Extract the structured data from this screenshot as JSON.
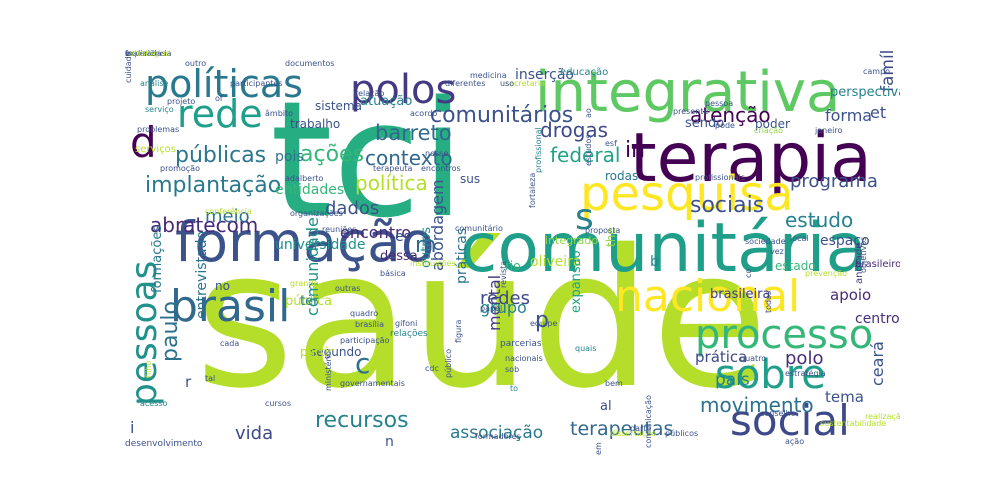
{
  "words": [
    {
      "text": "saúde",
      "color": "#b5de2b"
    },
    {
      "text": "tci",
      "color": "#26ad81"
    },
    {
      "text": "comunitária",
      "color": "#1f9e89"
    },
    {
      "text": "terapia",
      "color": "#440154"
    },
    {
      "text": "integrativa",
      "color": "#5ec962"
    },
    {
      "text": "formação",
      "color": "#3b528b"
    },
    {
      "text": "pesquisa",
      "color": "#fde725"
    },
    {
      "text": "nacional",
      "color": "#fde725"
    },
    {
      "text": "brasil",
      "color": "#31688e"
    },
    {
      "text": "processo",
      "color": "#35b779"
    },
    {
      "text": "sobre",
      "color": "#1f9e89"
    },
    {
      "text": "social",
      "color": "#3e4989"
    },
    {
      "text": "pessoas",
      "color": "#21918c"
    },
    {
      "text": "políticas",
      "color": "#2a788e"
    },
    {
      "text": "polos",
      "color": "#443983"
    },
    {
      "text": "rede",
      "color": "#1f9e89"
    },
    {
      "text": "públicas",
      "color": "#2a788e"
    },
    {
      "text": "implantação",
      "color": "#2a788e"
    },
    {
      "text": "abratecom",
      "color": "#482878"
    },
    {
      "text": "ações",
      "color": "#35b779"
    },
    {
      "text": "contexto",
      "color": "#31688e"
    },
    {
      "text": "política",
      "color": "#b5de2b"
    },
    {
      "text": "comunitários",
      "color": "#3b528b"
    },
    {
      "text": "barreto",
      "color": "#31688e"
    },
    {
      "text": "drogas",
      "color": "#3e4989"
    },
    {
      "text": "atenção",
      "color": "#440154"
    },
    {
      "text": "federal",
      "color": "#20a386"
    },
    {
      "text": "sociais",
      "color": "#3b528b"
    },
    {
      "text": "estudo",
      "color": "#26828e"
    },
    {
      "text": "programa",
      "color": "#3b528b"
    },
    {
      "text": "família",
      "color": "#3e4989"
    },
    {
      "text": "forma",
      "color": "#3b528b"
    },
    {
      "text": "movimento",
      "color": "#2c728e"
    },
    {
      "text": "associação",
      "color": "#2a788e"
    },
    {
      "text": "terapeutas",
      "color": "#31688e"
    },
    {
      "text": "recursos",
      "color": "#26828e"
    },
    {
      "text": "vida",
      "color": "#3e4989"
    },
    {
      "text": "comunidade",
      "color": "#21918c"
    },
    {
      "text": "abordagem",
      "color": "#3b528b"
    },
    {
      "text": "práticas",
      "color": "#2c728e"
    },
    {
      "text": "mental",
      "color": "#443983"
    },
    {
      "text": "redes",
      "color": "#3e4989"
    },
    {
      "text": "grupo",
      "color": "#26828e"
    },
    {
      "text": "polo",
      "color": "#472d7b"
    },
    {
      "text": "país",
      "color": "#26828e"
    },
    {
      "text": "ceará",
      "color": "#3b528b"
    },
    {
      "text": "tema",
      "color": "#3b528b"
    },
    {
      "text": "centro",
      "color": "#472d7b"
    },
    {
      "text": "apoio",
      "color": "#482878"
    },
    {
      "text": "espaço",
      "color": "#3b528b"
    },
    {
      "text": "prática",
      "color": "#3e4989"
    },
    {
      "text": "paulo",
      "color": "#2c728e"
    },
    {
      "text": "entrevistado",
      "color": "#2c728e"
    },
    {
      "text": "meio",
      "color": "#2c728e"
    },
    {
      "text": "dados",
      "color": "#3b528b"
    },
    {
      "text": "entidades",
      "color": "#35b779"
    },
    {
      "text": "universidade",
      "color": "#21918c"
    },
    {
      "text": "pública",
      "color": "#b5de2b"
    },
    {
      "text": "encontro",
      "color": "#482878"
    },
    {
      "text": "formações",
      "color": "#2a788e"
    },
    {
      "text": "pois",
      "color": "#2c728e"
    },
    {
      "text": "sendo",
      "color": "#3b528b"
    },
    {
      "text": "poder",
      "color": "#3b528b"
    },
    {
      "text": "perspectiva",
      "color": "#26828e"
    },
    {
      "text": "inserção",
      "color": "#3b528b"
    },
    {
      "text": "atuação",
      "color": "#26828e"
    },
    {
      "text": "sistema",
      "color": "#3b528b"
    },
    {
      "text": "trabalho",
      "color": "#3b528b"
    },
    {
      "text": "sus",
      "color": "#3b528b"
    },
    {
      "text": "rodas",
      "color": "#2a788e"
    },
    {
      "text": "oliveira",
      "color": "#b5de2b"
    },
    {
      "text": "segundo",
      "color": "#3b528b"
    },
    {
      "text": "partir",
      "color": "#b5de2b"
    },
    {
      "text": "outros",
      "color": "#21918c"
    },
    {
      "text": "expansão",
      "color": "#20a386"
    },
    {
      "text": "rio",
      "color": "#35b779"
    },
    {
      "text": "integrado",
      "color": "#90d743"
    },
    {
      "text": "estado",
      "color": "#35b779"
    },
    {
      "text": "brasileira",
      "color": "#443983"
    },
    {
      "text": "dessa",
      "color": "#482878"
    },
    {
      "text": "d",
      "color": "#440154"
    },
    {
      "text": "s",
      "color": "#26828e"
    },
    {
      "text": "c",
      "color": "#2c728e"
    },
    {
      "text": "p",
      "color": "#3b528b"
    },
    {
      "text": "m",
      "color": "#31688e"
    },
    {
      "text": "in",
      "color": "#440154"
    },
    {
      "text": "es",
      "color": "#3b528b"
    },
    {
      "text": "et",
      "color": "#3b528b"
    },
    {
      "text": "al",
      "color": "#3e4989"
    },
    {
      "text": "the",
      "color": "#90d743"
    },
    {
      "text": "b",
      "color": "#26828e"
    },
    {
      "text": "r",
      "color": "#3b528b"
    },
    {
      "text": "n",
      "color": "#3b528b"
    },
    {
      "text": "i",
      "color": "#3b528b"
    },
    {
      "text": "ter",
      "color": "#26828e"
    },
    {
      "text": "no",
      "color": "#3b528b"
    },
    {
      "text": "to",
      "color": "#26828e"
    },
    {
      "text": "brasileiro",
      "color": "#482878"
    },
    {
      "text": "andrade",
      "color": "#443983"
    },
    {
      "text": "educação",
      "color": "#26828e"
    },
    {
      "text": "documentos",
      "color": "#3b528b"
    },
    {
      "text": "participantes",
      "color": "#3b528b"
    },
    {
      "text": "análise",
      "color": "#26828e"
    },
    {
      "text": "projeto",
      "color": "#3b528b"
    },
    {
      "text": "serviço",
      "color": "#26828e"
    },
    {
      "text": "problemas",
      "color": "#3b528b"
    },
    {
      "text": "serviços",
      "color": "#b5de2b"
    },
    {
      "text": "promoção",
      "color": "#3b528b"
    },
    {
      "text": "adalberto",
      "color": "#3b528b"
    },
    {
      "text": "relação",
      "color": "#3b528b"
    },
    {
      "text": "acordo",
      "color": "#3b528b"
    },
    {
      "text": "terapeuta",
      "color": "#3b528b"
    },
    {
      "text": "encontros",
      "color": "#3b528b"
    },
    {
      "text": "profissional",
      "color": "#26828e"
    },
    {
      "text": "estudos",
      "color": "#3b528b"
    },
    {
      "text": "profissionais",
      "color": "#3b528b"
    },
    {
      "text": "sociedade",
      "color": "#3b528b"
    },
    {
      "text": "comunitário",
      "color": "#3b528b"
    },
    {
      "text": "nesse",
      "color": "#3b528b"
    },
    {
      "text": "quadro",
      "color": "#3b528b"
    },
    {
      "text": "brasília",
      "color": "#3b528b"
    },
    {
      "text": "relações",
      "color": "#26828e"
    },
    {
      "text": "participação",
      "color": "#3b528b"
    },
    {
      "text": "básica",
      "color": "#3b528b"
    },
    {
      "text": "outras",
      "color": "#3b528b"
    },
    {
      "text": "cursos",
      "color": "#3b528b"
    },
    {
      "text": "tal",
      "color": "#3b528b"
    },
    {
      "text": "público",
      "color": "#3b528b"
    },
    {
      "text": "ministério",
      "color": "#3b528b"
    },
    {
      "text": "governamentais",
      "color": "#3b528b"
    },
    {
      "text": "parcerias",
      "color": "#3b528b"
    },
    {
      "text": "quais",
      "color": "#26828e"
    },
    {
      "text": "equipe",
      "color": "#3b528b"
    },
    {
      "text": "quatro",
      "color": "#3b528b"
    },
    {
      "text": "estratégia",
      "color": "#3b528b"
    },
    {
      "text": "ação",
      "color": "#3b528b"
    },
    {
      "text": "conselho",
      "color": "#3b528b"
    },
    {
      "text": "públicos",
      "color": "#3b528b"
    },
    {
      "text": "podem",
      "color": "#3b528b"
    },
    {
      "text": "formadores",
      "color": "#3b528b"
    },
    {
      "text": "desenvolvimento",
      "color": "#3b528b"
    },
    {
      "text": "acesso",
      "color": "#26828e"
    },
    {
      "text": "pessoa",
      "color": "#3b528b"
    },
    {
      "text": "presente",
      "color": "#3b528b"
    },
    {
      "text": "criação",
      "color": "#90d743"
    },
    {
      "text": "janeiro",
      "color": "#3b528b"
    },
    {
      "text": "pode",
      "color": "#3b528b"
    },
    {
      "text": "medicina",
      "color": "#3b528b"
    },
    {
      "text": "diferentes",
      "color": "#3b528b"
    },
    {
      "text": "secretaria",
      "color": "#b5de2b"
    },
    {
      "text": "outro",
      "color": "#3b528b"
    },
    {
      "text": "cuidado",
      "color": "#3b528b"
    },
    {
      "text": "âmbito",
      "color": "#3b528b"
    },
    {
      "text": "instituições",
      "color": "#b5de2b"
    },
    {
      "text": "papel",
      "color": "#3b528b"
    },
    {
      "text": "conferência",
      "color": "#b5de2b"
    },
    {
      "text": "reuniões",
      "color": "#3b528b"
    },
    {
      "text": "revista",
      "color": "#3b528b"
    },
    {
      "text": "exemplo",
      "color": "#3b528b"
    },
    {
      "text": "gifoni",
      "color": "#3b528b"
    },
    {
      "text": "sustentabilidade",
      "color": "#b5de2b"
    },
    {
      "text": "realização",
      "color": "#b5de2b"
    },
    {
      "text": "prevenção",
      "color": "#b5de2b"
    },
    {
      "text": "cdc",
      "color": "#3b528b"
    },
    {
      "text": "cada",
      "color": "#3b528b"
    },
    {
      "text": "nacionais",
      "color": "#3b528b"
    },
    {
      "text": "sob",
      "color": "#3b528b"
    },
    {
      "text": "figura",
      "color": "#3b528b"
    },
    {
      "text": "bem",
      "color": "#3b528b"
    },
    {
      "text": "parte",
      "color": "#3b528b"
    },
    {
      "text": "dissertação",
      "color": "#b5de2b"
    },
    {
      "text": "comunicação",
      "color": "#3b528b"
    },
    {
      "text": "filho",
      "color": "#b5de2b"
    },
    {
      "text": "campo",
      "color": "#3b528b"
    },
    {
      "text": "objetivos",
      "color": "#3b528b"
    },
    {
      "text": "todos",
      "color": "#3b528b"
    },
    {
      "text": "proposta",
      "color": "#3b528b"
    },
    {
      "text": "fortaleza",
      "color": "#3b528b"
    },
    {
      "text": "local",
      "color": "#3b528b"
    },
    {
      "text": "vez",
      "color": "#3b528b"
    },
    {
      "text": "organizações",
      "color": "#3b528b"
    },
    {
      "text": "of",
      "color": "#3b528b"
    },
    {
      "text": "ao",
      "color": "#3b528b"
    },
    {
      "text": "co",
      "color": "#3b528b"
    },
    {
      "text": "esf",
      "color": "#3b528b"
    },
    {
      "text": "uso",
      "color": "#3b528b"
    },
    {
      "text": "grande",
      "color": "#b5de2b"
    },
    {
      "text": "experiência",
      "color": "#3b528b"
    },
    {
      "text": "realizadas",
      "color": "#3b528b"
    },
    {
      "text": "estratégias",
      "color": "#b5de2b"
    },
    {
      "text": "f",
      "color": "#3b528b"
    },
    {
      "text": "v",
      "color": "#3b528b"
    },
    {
      "text": "e",
      "color": "#3b528b"
    }
  ]
}
